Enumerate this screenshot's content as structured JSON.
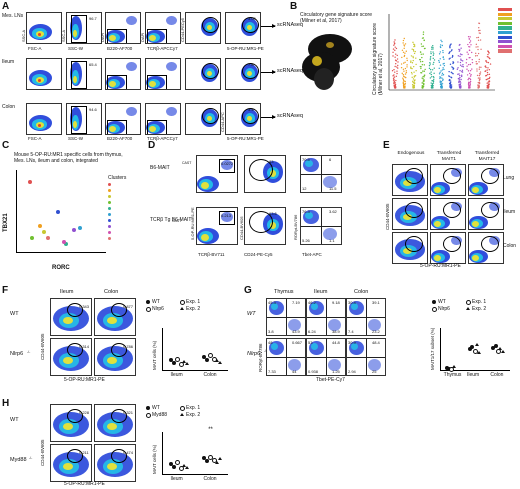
{
  "panels": {
    "A": {
      "letter": "A",
      "rows": [
        {
          "label": "Mes. LNs",
          "output": "scRNAseq",
          "gates": [
            "",
            "96.7",
            "",
            "",
            "",
            "3.09"
          ]
        },
        {
          "label": "Ileum",
          "output": "scRNAseq",
          "gates": [
            "",
            "65.4",
            "",
            "",
            "",
            "7.8"
          ]
        },
        {
          "label": "Colon",
          "output": "scRNAseq",
          "gates": [
            "",
            "94.6",
            "",
            "",
            "",
            "3.4"
          ]
        }
      ],
      "x_axes": [
        "FSC-A",
        "SSC-W",
        "B220-AF700",
        "TCRβ-APCCy7",
        "5-OP-RU:MR1-PE"
      ],
      "y_axes": [
        "SSC-A",
        "SSC-A",
        "DAPI",
        "DAPI",
        "CD44-PECy5"
      ],
      "colon_y_last": "CD44-APC"
    },
    "B": {
      "letter": "B",
      "umap_title": "Circulatory gene signature score (Milner et al, 2017)",
      "ylabel": "Circulatory gene signature score (Milner et al, 2017)"
    },
    "C": {
      "letter": "C",
      "title": "Mouse 5-OP-RU:MR1 specific cells from thymus, Mes. LNs, ileum and colon, integrated",
      "xlabel": "RORC",
      "ylabel": "TBX21",
      "legend_title": "Clusters"
    },
    "D": {
      "letter": "D",
      "rows": [
        {
          "label": "B6-MAIT",
          "sup": "CAST",
          "g1": "0.0272",
          "g2": "83",
          "q": [
            "70.5",
            "6",
            "12",
            "11.5"
          ]
        },
        {
          "label": "TCRβ Tg B6-MAIT",
          "sup": "CAST",
          "g1": "0.213",
          "g2": "63.6",
          "q": [
            "76.3",
            "3.62",
            "5.26",
            "1.1"
          ]
        }
      ],
      "xlabels": [
        "TCRβ-BV711",
        "CD24-PE-Cy5",
        "Tbet-APC"
      ],
      "ylabels": [
        "5-OP-RU:MR1-PE",
        "CD44-BV605",
        "RORγt-BV786"
      ]
    },
    "E": {
      "letter": "E",
      "cols": [
        "Endogenous",
        "Transferred MAIT1",
        "Transferred MAIT17"
      ],
      "rows": [
        "Lung",
        "Ileum",
        "Colon"
      ],
      "xlabel": "5-OP-RU:MR1-PE",
      "ylabel": "CD44-BV605"
    },
    "F": {
      "letter": "F",
      "cols": [
        "Ileum",
        "Colon"
      ],
      "rows": [
        {
          "label": "WT",
          "vals": [
            "0.343",
            "0.877"
          ]
        },
        {
          "label": "Nlrp6",
          "sup": "-/-",
          "vals": [
            "0.314",
            "0.786"
          ]
        }
      ],
      "xlabel": "5-OP-RU:MR1-PE",
      "ylabel": "CD44-BV605",
      "legend": [
        "WT",
        "Nlrp6",
        "Exp. 1",
        "Exp. 2"
      ],
      "chart_ylabel": "MAIT cells (%)",
      "chart_cats": [
        "Ileum",
        "Colon"
      ],
      "chart_yticks": [
        "0.0",
        "0.5",
        "1.0",
        "1.5",
        "2.0"
      ]
    },
    "G": {
      "letter": "G",
      "cols": [
        "Thymus",
        "Ileum",
        "Colon"
      ],
      "rows": [
        {
          "label": "WT",
          "q": [
            [
              "45.3",
              "7.19",
              "3.8",
              "43.9"
            ],
            [
              "46.2",
              "9.18",
              "6.24",
              "38.9"
            ],
            [
              "30.4",
              "39.1",
              "7.4",
              "23.2"
            ]
          ]
        },
        {
          "label": "Nlrp6",
          "sup": "-/-",
          "q": [
            [
              "48",
              "0.667",
              "7.33",
              "44"
            ],
            [
              "53",
              "44.8",
              "0.938",
              "1.25"
            ],
            [
              "30.9",
              "48.4",
              "2.94",
              "25"
            ]
          ]
        }
      ],
      "xlabel": "Tbet-PE-Cy7",
      "ylabel": "RORγt-BV786",
      "legend": [
        "WT",
        "Nlrp6",
        "Exp. 1",
        "Exp. 2"
      ],
      "chart_ylabel": "MAIT1/17 subset (%)",
      "chart_cats": [
        "Thymus",
        "Ileum",
        "Colon"
      ]
    },
    "H": {
      "letter": "H",
      "rows": [
        {
          "label": "WT",
          "vals": [
            "0.228",
            "0.321"
          ]
        },
        {
          "label": "Myd88",
          "sup": "-/-",
          "vals": [
            "0.211",
            "0.474"
          ]
        }
      ],
      "xlabel": "5-OP-RU:MR1-PE",
      "ylabel": "CD44-BV605",
      "legend": [
        "WT",
        "Myd88",
        "Exp. 1",
        "Exp. 2"
      ],
      "chart_ylabel": "MAIT cells (%)",
      "chart_cats": [
        "Ileum",
        "Colon"
      ],
      "sig": "**"
    }
  },
  "colors": {
    "density_low": "#1a3bd8",
    "density_mid": "#22c7e8",
    "density_hi": "#f5e52a",
    "density_peak": "#e8402a",
    "clusters": [
      "#e05050",
      "#f0a020",
      "#c8c830",
      "#70c030",
      "#30b090",
      "#30a0d0",
      "#3050d0",
      "#9050d0",
      "#d050b0",
      "#e07070"
    ]
  }
}
